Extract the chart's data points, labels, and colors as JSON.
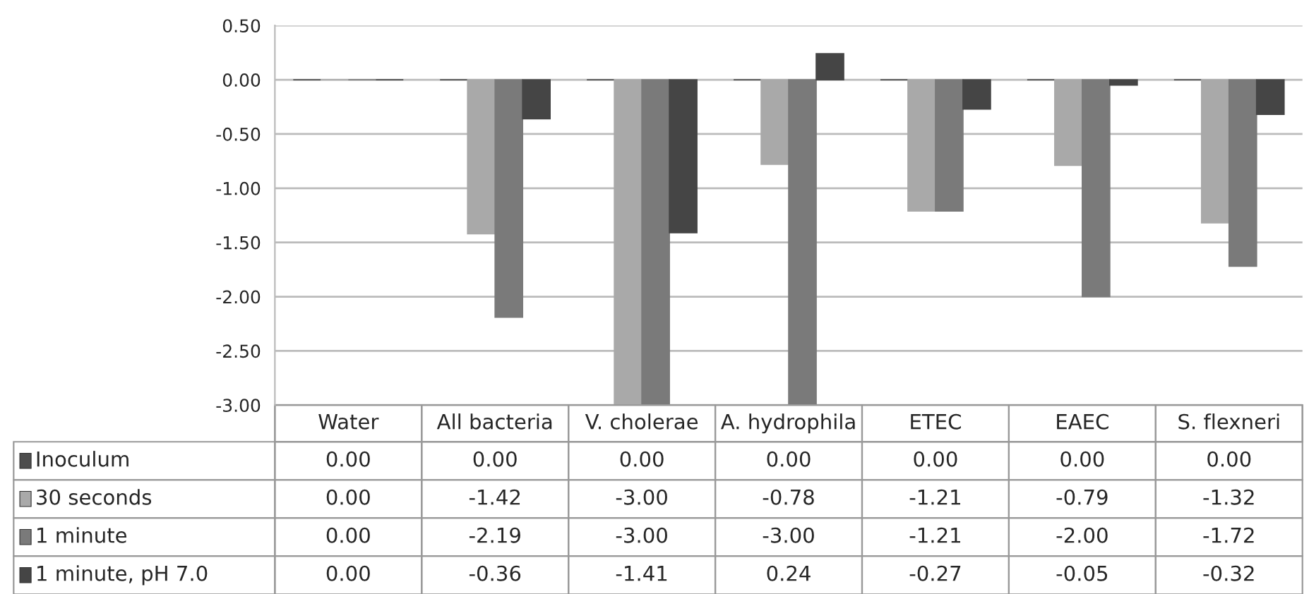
{
  "chart_data": {
    "type": "bar",
    "categories": [
      "Water",
      "All bacteria",
      "V. cholerae",
      "A. hydrophila",
      "ETEC",
      "EAEC",
      "S. flexneri"
    ],
    "series": [
      {
        "name": "Inoculum",
        "color": "#4d4d4d",
        "values": [
          0,
          0,
          0,
          0,
          0,
          0,
          0
        ],
        "value_labels": [
          "0.00",
          "0.00",
          "0.00",
          "0.00",
          "0.00",
          "0.00",
          "0.00"
        ]
      },
      {
        "name": "30 seconds",
        "color": "#a9a9a9",
        "values": [
          0,
          -1.42,
          -3.0,
          -0.78,
          -1.21,
          -0.79,
          -1.32
        ],
        "value_labels": [
          "0.00",
          "-1.42",
          "-3.00",
          "-0.78",
          "-1.21",
          "-0.79",
          "-1.32"
        ]
      },
      {
        "name": "1 minute",
        "color": "#7a7a7a",
        "values": [
          0,
          -2.19,
          -3.0,
          -3.0,
          -1.21,
          -2.0,
          -1.72
        ],
        "value_labels": [
          "0.00",
          "-2.19",
          "-3.00",
          "-3.00",
          "-1.21",
          "-2.00",
          "-1.72"
        ]
      },
      {
        "name": "1 minute, pH 7.0",
        "color": "#454545",
        "values": [
          0,
          -0.36,
          -1.41,
          0.24,
          -0.27,
          -0.05,
          -0.32
        ],
        "value_labels": [
          "0.00",
          "-0.36",
          "-1.41",
          "0.24",
          "-0.27",
          "-0.05",
          "-0.32"
        ]
      }
    ],
    "ylim": [
      -3.0,
      0.5
    ],
    "yticks": [
      {
        "value": 0.5,
        "label": "0.50"
      },
      {
        "value": 0,
        "label": "0.00"
      },
      {
        "value": -0.5,
        "label": "-0.50"
      },
      {
        "value": -1.0,
        "label": "-1.00"
      },
      {
        "value": -1.5,
        "label": "-1.50"
      },
      {
        "value": -2.0,
        "label": "-2.00"
      },
      {
        "value": -2.5,
        "label": "-2.50"
      },
      {
        "value": -3.0,
        "label": "-3.00"
      }
    ],
    "grid": "y",
    "tick_labels": "y",
    "legend": "bottom"
  }
}
